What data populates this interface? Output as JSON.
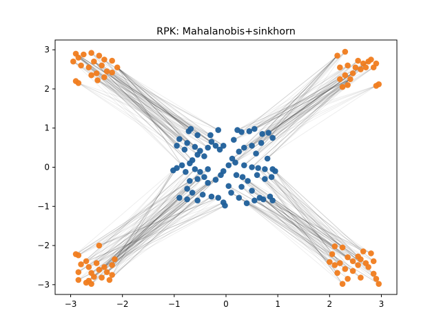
{
  "chart_data": {
    "type": "scatter",
    "title": "RPK: Mahalanobis+sinkhorn",
    "xlabel": "",
    "ylabel": "",
    "xlim": [
      -3.3,
      3.3
    ],
    "ylim": [
      -3.25,
      3.25
    ],
    "xticks": [
      -3,
      -2,
      -1,
      0,
      1,
      2,
      3
    ],
    "yticks": [
      -3,
      -2,
      -1,
      0,
      1,
      2,
      3
    ],
    "xtick_labels": [
      "−3",
      "−2",
      "−1",
      "0",
      "1",
      "2",
      "3"
    ],
    "ytick_labels": [
      "−3",
      "−2",
      "−1",
      "0",
      "1",
      "2",
      "3"
    ],
    "grid": false,
    "colors": {
      "source": "#1f5f9a",
      "target": "#f07c1e",
      "links": "#000000"
    },
    "series": [
      {
        "role": "source",
        "color": "#1f5f9a",
        "points": [
          [
            -0.68,
            0.98
          ],
          [
            -0.72,
            0.92
          ],
          [
            -0.55,
            0.82
          ],
          [
            -0.9,
            0.72
          ],
          [
            -0.75,
            0.62
          ],
          [
            -0.95,
            0.55
          ],
          [
            -0.8,
            0.45
          ],
          [
            -0.6,
            0.52
          ],
          [
            -0.5,
            0.42
          ],
          [
            -0.42,
            0.28
          ],
          [
            -0.55,
            0.32
          ],
          [
            -0.65,
            0.18
          ],
          [
            -0.7,
            0.1
          ],
          [
            -0.85,
            0.05
          ],
          [
            -0.95,
            -0.02
          ],
          [
            -1.02,
            -0.08
          ],
          [
            -0.78,
            -0.12
          ],
          [
            -0.6,
            -0.05
          ],
          [
            -0.5,
            -0.12
          ],
          [
            -0.35,
            -0.05
          ],
          [
            -0.42,
            -0.25
          ],
          [
            -0.55,
            -0.3
          ],
          [
            -0.7,
            -0.35
          ],
          [
            -0.75,
            -0.55
          ],
          [
            -0.65,
            -0.65
          ],
          [
            -0.9,
            -0.78
          ],
          [
            -0.75,
            -0.82
          ],
          [
            -0.55,
            -0.85
          ],
          [
            -0.45,
            -0.7
          ],
          [
            -0.28,
            -0.75
          ],
          [
            -0.15,
            -0.78
          ],
          [
            -0.05,
            -0.9
          ],
          [
            -0.02,
            -0.98
          ],
          [
            -0.35,
            -0.4
          ],
          [
            -0.2,
            -0.32
          ],
          [
            -0.1,
            -0.2
          ],
          [
            -0.05,
            -0.1
          ],
          [
            -0.12,
            0.45
          ],
          [
            -0.2,
            0.55
          ],
          [
            -0.28,
            0.65
          ],
          [
            -0.3,
            0.82
          ],
          [
            -0.15,
            0.95
          ],
          [
            -0.05,
            0.55
          ],
          [
            -0.35,
            0.5
          ],
          [
            0.22,
            0.95
          ],
          [
            0.3,
            0.9
          ],
          [
            0.45,
            0.92
          ],
          [
            0.55,
            0.98
          ],
          [
            0.7,
            0.85
          ],
          [
            0.82,
            0.88
          ],
          [
            0.9,
            0.75
          ],
          [
            0.68,
            0.62
          ],
          [
            0.5,
            0.55
          ],
          [
            0.35,
            0.5
          ],
          [
            0.25,
            0.4
          ],
          [
            0.12,
            0.22
          ],
          [
            0.05,
            0.05
          ],
          [
            0.18,
            0.12
          ],
          [
            0.35,
            0.05
          ],
          [
            0.5,
            0.0
          ],
          [
            0.62,
            -0.02
          ],
          [
            0.75,
            -0.05
          ],
          [
            0.9,
            -0.05
          ],
          [
            0.95,
            -0.1
          ],
          [
            0.88,
            -0.25
          ],
          [
            0.75,
            -0.3
          ],
          [
            0.6,
            -0.2
          ],
          [
            0.42,
            -0.35
          ],
          [
            0.3,
            -0.5
          ],
          [
            0.5,
            -0.6
          ],
          [
            0.65,
            -0.78
          ],
          [
            0.72,
            -0.82
          ],
          [
            0.85,
            -0.75
          ],
          [
            0.9,
            -0.85
          ],
          [
            0.55,
            -0.85
          ],
          [
            0.4,
            -0.92
          ],
          [
            0.25,
            -0.78
          ],
          [
            0.1,
            -0.65
          ],
          [
            0.05,
            -0.48
          ],
          [
            0.2,
            -0.2
          ],
          [
            0.32,
            -0.25
          ],
          [
            0.58,
            0.35
          ],
          [
            0.8,
            0.22
          ],
          [
            0.15,
            0.7
          ]
        ]
      },
      {
        "role": "target",
        "color": "#f07c1e",
        "points": [
          [
            -2.9,
            2.9
          ],
          [
            -2.85,
            2.8
          ],
          [
            -2.75,
            2.88
          ],
          [
            -2.6,
            2.92
          ],
          [
            -2.45,
            2.85
          ],
          [
            -2.35,
            2.75
          ],
          [
            -2.2,
            2.72
          ],
          [
            -2.1,
            2.55
          ],
          [
            -2.3,
            2.45
          ],
          [
            -2.5,
            2.4
          ],
          [
            -2.65,
            2.55
          ],
          [
            -2.8,
            2.6
          ],
          [
            -2.95,
            2.7
          ],
          [
            -2.4,
            2.6
          ],
          [
            -2.55,
            2.7
          ],
          [
            -2.2,
            2.42
          ],
          [
            -2.35,
            2.3
          ],
          [
            -2.48,
            2.22
          ],
          [
            -2.9,
            2.2
          ],
          [
            -2.85,
            2.15
          ],
          [
            -2.6,
            2.35
          ],
          [
            2.15,
            2.85
          ],
          [
            2.3,
            2.95
          ],
          [
            2.2,
            2.55
          ],
          [
            2.35,
            2.6
          ],
          [
            2.5,
            2.55
          ],
          [
            2.55,
            2.72
          ],
          [
            2.65,
            2.65
          ],
          [
            2.75,
            2.7
          ],
          [
            2.8,
            2.75
          ],
          [
            2.9,
            2.65
          ],
          [
            2.85,
            2.55
          ],
          [
            2.6,
            2.5
          ],
          [
            2.45,
            2.4
          ],
          [
            2.3,
            2.35
          ],
          [
            2.4,
            2.25
          ],
          [
            2.2,
            2.25
          ],
          [
            2.25,
            2.05
          ],
          [
            2.35,
            2.1
          ],
          [
            2.95,
            2.12
          ],
          [
            2.9,
            2.08
          ],
          [
            2.7,
            2.55
          ],
          [
            -2.9,
            -2.22
          ],
          [
            -2.85,
            -2.25
          ],
          [
            -2.8,
            -2.48
          ],
          [
            -2.85,
            -2.68
          ],
          [
            -2.7,
            -2.4
          ],
          [
            -2.65,
            -2.55
          ],
          [
            -2.6,
            -2.7
          ],
          [
            -2.5,
            -2.45
          ],
          [
            -2.45,
            -2.62
          ],
          [
            -2.35,
            -2.55
          ],
          [
            -2.2,
            -2.5
          ],
          [
            -2.15,
            -2.35
          ],
          [
            -2.45,
            -2.0
          ],
          [
            -2.55,
            -2.8
          ],
          [
            -2.7,
            -2.95
          ],
          [
            -2.6,
            -2.98
          ],
          [
            -2.4,
            -2.82
          ],
          [
            -2.2,
            -2.75
          ],
          [
            -2.25,
            -2.88
          ],
          [
            -2.85,
            -2.88
          ],
          [
            -2.3,
            -2.68
          ],
          [
            -2.65,
            -2.9
          ],
          [
            2.0,
            -2.42
          ],
          [
            2.1,
            -2.5
          ],
          [
            2.2,
            -2.45
          ],
          [
            2.3,
            -2.6
          ],
          [
            2.15,
            -2.7
          ],
          [
            2.25,
            -2.98
          ],
          [
            2.35,
            -2.85
          ],
          [
            2.45,
            -2.65
          ],
          [
            2.55,
            -2.5
          ],
          [
            2.6,
            -2.35
          ],
          [
            2.7,
            -2.45
          ],
          [
            2.75,
            -2.55
          ],
          [
            2.85,
            -2.72
          ],
          [
            2.9,
            -2.85
          ],
          [
            2.95,
            -2.98
          ],
          [
            2.8,
            -2.2
          ],
          [
            2.65,
            -2.15
          ],
          [
            2.55,
            -2.28
          ],
          [
            2.45,
            -2.4
          ],
          [
            2.35,
            -2.3
          ],
          [
            2.25,
            -2.05
          ],
          [
            2.1,
            -2.02
          ],
          [
            2.6,
            -2.82
          ],
          [
            2.85,
            -2.4
          ],
          [
            2.05,
            -2.22
          ]
        ]
      }
    ]
  }
}
